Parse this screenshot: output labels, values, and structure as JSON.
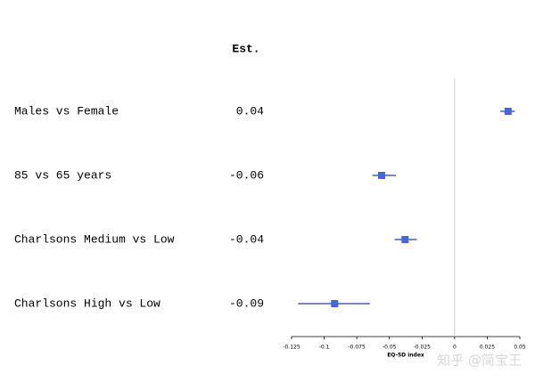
{
  "chart_data": {
    "type": "forest",
    "est_header": "Est.",
    "categories": [
      "Males vs Female",
      "85 vs 65 years",
      "Charlsons Medium vs Low",
      "Charlsons High vs Low"
    ],
    "values": [
      0.041,
      -0.056,
      -0.038,
      -0.092
    ],
    "value_labels": [
      "0.04",
      "-0.06",
      "-0.04",
      "-0.09"
    ],
    "ci_low": [
      0.035,
      -0.063,
      -0.046,
      -0.12
    ],
    "ci_high": [
      0.046,
      -0.045,
      -0.029,
      -0.065
    ],
    "color": "#4169d8",
    "xlim": [
      -0.125,
      0.05
    ],
    "xticks": [
      -0.125,
      -0.1,
      -0.075,
      -0.05,
      -0.025,
      0,
      0.025,
      0.05
    ],
    "xlabel": "EQ-5D index",
    "reference_line": 0,
    "watermark": "知乎 @简宝王"
  }
}
